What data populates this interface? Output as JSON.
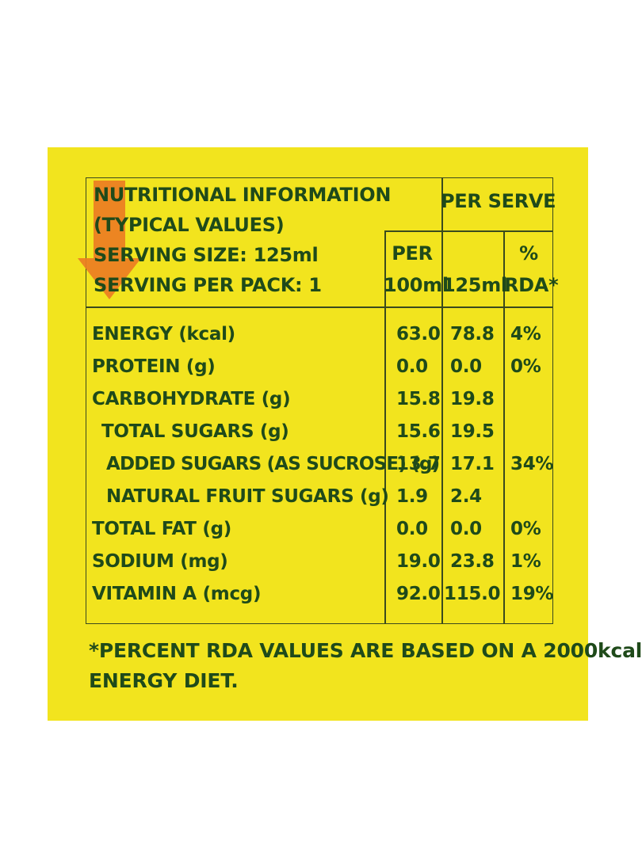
{
  "colors": {
    "panel": "#f2e41e",
    "text": "#1f4a1a",
    "rule": "#3a4a1e",
    "arrow": "#ec7d23"
  },
  "header": {
    "title_line1": "NUTRITIONAL INFORMATION",
    "title_line2": "(TYPICAL VALUES)",
    "serving_size": "SERVING SIZE: 125ml",
    "serving_per_pack": "SERVING PER PACK: 1",
    "per_serve": "PER SERVE",
    "col_per100_line1": "PER",
    "col_per100_line2": "100ml",
    "col_125": "125ml",
    "col_rda_line1": "%",
    "col_rda_line2": "RDA*"
  },
  "rows": [
    {
      "label": "ENERGY (kcal)",
      "per100": "63.0",
      "per125": "78.8",
      "rda": "4%"
    },
    {
      "label": "PROTEIN (g)",
      "per100": "0.0",
      "per125": "0.0",
      "rda": "0%"
    },
    {
      "label": "CARBOHYDRATE (g)",
      "per100": "15.8",
      "per125": "19.8",
      "rda": ""
    },
    {
      "label": "TOTAL SUGARS (g)",
      "per100": "15.6",
      "per125": "19.5",
      "rda": ""
    },
    {
      "label": "ADDED SUGARS (AS SUCROSE) (g)",
      "per100": "13.7",
      "per125": "17.1",
      "rda": "34%"
    },
    {
      "label": "NATURAL FRUIT SUGARS (g)",
      "per100": "1.9",
      "per125": "2.4",
      "rda": ""
    },
    {
      "label": "TOTAL FAT (g)",
      "per100": "0.0",
      "per125": "0.0",
      "rda": "0%"
    },
    {
      "label": "SODIUM (mg)",
      "per100": "19.0",
      "per125": "23.8",
      "rda": "1%"
    },
    {
      "label": "VITAMIN A (mcg)",
      "per100": "92.0",
      "per125": "115.0",
      "rda": "19%"
    }
  ],
  "footnote_line1": "*PERCENT RDA VALUES ARE BASED ON A 2000kcal",
  "footnote_line2": "ENERGY DIET."
}
